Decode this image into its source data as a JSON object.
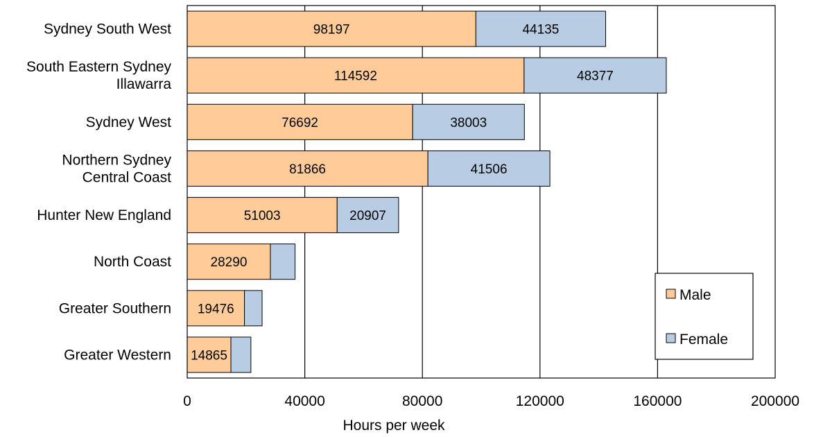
{
  "chart_data": {
    "type": "bar",
    "orientation": "horizontal",
    "stacked": true,
    "categories": [
      [
        "Sydney South West"
      ],
      [
        "South Eastern Sydney",
        "Illawarra"
      ],
      [
        "Sydney West"
      ],
      [
        "Northern Sydney",
        "Central Coast"
      ],
      [
        "Hunter New England"
      ],
      [
        "North Coast"
      ],
      [
        "Greater Southern"
      ],
      [
        "Greater Western"
      ]
    ],
    "series": [
      {
        "name": "Male",
        "color": "#FFCC99",
        "values": [
          98197,
          114592,
          76692,
          81866,
          51003,
          28290,
          19476,
          14865
        ],
        "labels": [
          "98197",
          "114592",
          "76692",
          "81866",
          "51003",
          "28290",
          "19476",
          "14865"
        ]
      },
      {
        "name": "Female",
        "color": "#B8CCE4",
        "values": [
          44135,
          48377,
          38003,
          41506,
          20907,
          8400,
          6000,
          6800
        ],
        "labels": [
          "44135",
          "48377",
          "38003",
          "41506",
          "20907",
          "",
          "",
          ""
        ]
      }
    ],
    "xlabel": "Hours per week",
    "xlim": [
      0,
      200000
    ],
    "xticks": [
      0,
      40000,
      80000,
      120000,
      160000,
      200000
    ],
    "xtick_labels": [
      "0",
      "40000",
      "80000",
      "120000",
      "160000",
      "200000"
    ],
    "grid": "vertical",
    "legend_position": "bottom-right"
  }
}
